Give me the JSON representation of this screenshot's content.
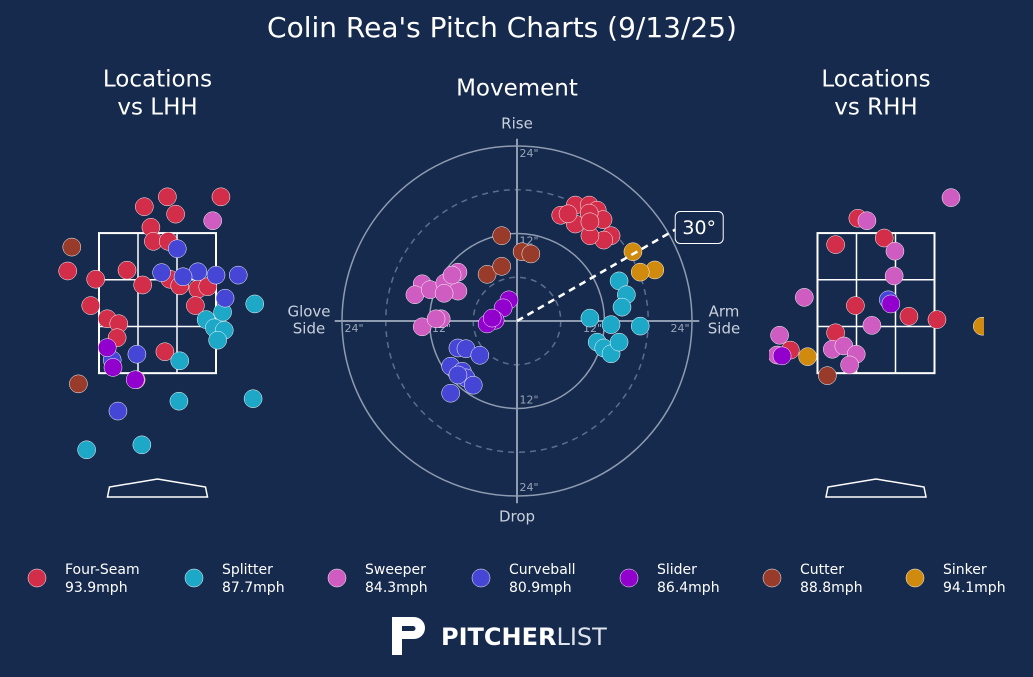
{
  "title": "Colin Rea's Pitch Charts (9/13/25)",
  "panels": {
    "lhh": {
      "title": [
        "Locations",
        "vs LHH"
      ]
    },
    "movement": {
      "title": [
        "Movement"
      ],
      "top": [
        "Rise"
      ],
      "bottom": [
        "Drop"
      ],
      "left": [
        "Glove",
        "Side"
      ],
      "right": [
        "Arm",
        "Side"
      ],
      "lim": 25,
      "minor_rings": [
        6,
        18
      ],
      "rings": [
        {
          "value": 12,
          "label": "12\""
        },
        {
          "value": 24,
          "label": "24\""
        }
      ],
      "arm_angle": {
        "value": 30,
        "label": "30°"
      }
    },
    "rhh": {
      "title": [
        "Locations",
        "vs RHH"
      ]
    }
  },
  "strike_zone": {
    "xlim": [
      -0.71,
      0.71
    ],
    "ylim": [
      1.6,
      3.3
    ]
  },
  "pitches": [
    {
      "name": "Four-Seam",
      "speed": "93.9mph",
      "color": "#d22d49",
      "lhh": {
        "x": [
          0.12,
          0.77,
          -0.16,
          0.22,
          -0.08,
          -0.05,
          0.13,
          -0.75,
          -0.37,
          -0.18,
          0.15,
          0.27,
          0.49,
          0.61,
          0.46,
          -0.81,
          -0.61,
          -0.47,
          -0.49,
          0.09,
          -0.26,
          -1.09
        ],
        "y": [
          3.74,
          3.74,
          3.62,
          3.53,
          3.37,
          3.2,
          3.2,
          2.74,
          2.85,
          2.67,
          2.74,
          2.66,
          2.62,
          2.65,
          2.42,
          2.42,
          2.26,
          2.2,
          2.03,
          1.86,
          1.52,
          2.84
        ]
      },
      "movement": {
        "x": [
          6.0,
          8.0,
          9.9,
          11.0,
          11.8,
          12.9,
          11.9,
          10.0,
          8.0,
          7.0,
          9.9,
          10.0
        ],
        "y": [
          14.5,
          15.9,
          15.9,
          15.2,
          13.9,
          11.7,
          11.1,
          11.7,
          13.3,
          14.7,
          14.8,
          13.6
        ]
      },
      "rhh": {
        "x": [
          -0.22,
          -0.49,
          0.1,
          -0.25,
          -0.49,
          0.4,
          0.74,
          -1.04
        ],
        "y": [
          3.48,
          3.16,
          3.24,
          2.42,
          2.09,
          2.29,
          2.25,
          1.88
        ]
      }
    },
    {
      "name": "Splitter",
      "speed": "87.7mph",
      "color": "#1ea8c8",
      "lhh": {
        "x": [
          1.18,
          0.79,
          0.59,
          0.69,
          0.81,
          0.73,
          0.27,
          0.26,
          1.16,
          -0.19,
          -0.86
        ],
        "y": [
          2.44,
          2.34,
          2.25,
          2.15,
          2.12,
          2.0,
          1.75,
          1.26,
          1.29,
          0.73,
          0.67
        ]
      },
      "movement": {
        "x": [
          14.0,
          15.0,
          14.4,
          10.0,
          12.9,
          16.9,
          11.0,
          11.9,
          12.9,
          14.0
        ],
        "y": [
          5.5,
          3.6,
          1.9,
          0.4,
          -0.5,
          -0.7,
          -2.9,
          -3.7,
          -4.5,
          -2.9
        ]
      },
      "rhh": {
        "x": [],
        "y": []
      }
    },
    {
      "name": "Sweeper",
      "speed": "84.3mph",
      "color": "#cf5cc0",
      "lhh": {
        "x": [
          0.67
        ],
        "y": [
          3.45
        ]
      },
      "movement": {
        "x": [
          -13.0,
          -14.0,
          -11.9,
          -9.9,
          -8.1,
          -8.1,
          -10.0,
          -8.9,
          -10.4,
          -13.0,
          -11.1
        ],
        "y": [
          5.1,
          3.6,
          4.3,
          5.2,
          6.7,
          4.1,
          3.8,
          6.3,
          0.3,
          -0.8,
          0.3
        ]
      },
      "rhh": {
        "x": [
          -0.11,
          0.23,
          0.22,
          0.91,
          -0.87,
          -0.05,
          -1.17,
          -0.53,
          -0.39,
          -0.24,
          -0.32,
          -1.2
        ],
        "y": [
          3.45,
          3.08,
          2.78,
          3.73,
          2.52,
          2.18,
          2.06,
          1.89,
          1.93,
          1.83,
          1.7,
          1.82
        ]
      }
    },
    {
      "name": "Curveball",
      "speed": "80.9mph",
      "color": "#4646d6",
      "lhh": {
        "x": [
          0.24,
          0.05,
          0.49,
          0.71,
          0.98,
          0.31,
          0.82,
          -0.25,
          -0.55,
          -0.48
        ],
        "y": [
          3.11,
          2.82,
          2.83,
          2.79,
          2.79,
          2.77,
          2.51,
          1.83,
          1.76,
          1.14
        ]
      },
      "movement": {
        "x": [
          -8.1,
          -7.0,
          -5.1,
          -9.1,
          -7.5,
          -7.0,
          -6.0,
          -9.1,
          -8.1
        ],
        "y": [
          -3.7,
          -3.8,
          -4.7,
          -6.2,
          -6.9,
          -7.8,
          -8.8,
          -9.9,
          -7.4
        ]
      },
      "rhh": {
        "x": [
          0.15
        ],
        "y": [
          2.49
        ]
      }
    },
    {
      "name": "Slider",
      "speed": "86.4mph",
      "color": "#9100cd",
      "lhh": {
        "x": [
          -0.61,
          -0.54,
          -0.27
        ],
        "y": [
          1.91,
          1.67,
          1.52
        ]
      },
      "movement": {
        "x": [
          -1.1,
          -1.9,
          -3.0,
          -4.1,
          -3.4
        ],
        "y": [
          2.9,
          1.8,
          0.1,
          -0.4,
          0.4
        ]
      },
      "rhh": {
        "x": [
          0.18,
          -1.14
        ],
        "y": [
          2.44,
          1.81
        ]
      }
    },
    {
      "name": "Cutter",
      "speed": "88.8mph",
      "color": "#983b2a",
      "lhh": {
        "x": [
          -1.04,
          -0.96
        ],
        "y": [
          3.13,
          1.47
        ]
      },
      "movement": {
        "x": [
          -2.1,
          -4.1,
          -2.1,
          0.7,
          1.9
        ],
        "y": [
          11.7,
          6.4,
          7.5,
          9.5,
          9.2
        ]
      },
      "rhh": {
        "x": [
          -0.59
        ],
        "y": [
          1.57
        ]
      }
    },
    {
      "name": "Sinker",
      "speed": "94.1mph",
      "color": "#d08a0e",
      "lhh": {
        "x": [],
        "y": []
      },
      "movement": {
        "x": [
          15.9,
          18.9,
          16.9
        ],
        "y": [
          9.5,
          7.0,
          6.7
        ]
      },
      "rhh": {
        "x": [
          -0.83,
          1.29
        ],
        "y": [
          1.8,
          2.17
        ]
      }
    }
  ],
  "logo": {
    "bold": "PITCHER",
    "light": "LIST"
  }
}
